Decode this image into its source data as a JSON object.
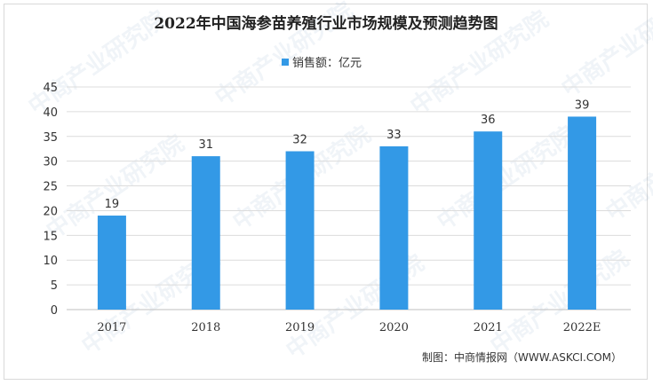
{
  "chart_data": {
    "type": "bar",
    "title": "2022年中国海参苗养殖行业市场规模及预测趋势图",
    "legend": {
      "label": "销售额：亿元",
      "position": "top"
    },
    "categories": [
      "2017",
      "2018",
      "2019",
      "2020",
      "2021",
      "2022E"
    ],
    "series": [
      {
        "name": "销售额：亿元",
        "values": [
          19,
          31,
          32,
          33,
          36,
          39
        ]
      }
    ],
    "yticks": [
      "0",
      "5",
      "10",
      "15",
      "20",
      "25",
      "30",
      "35",
      "40",
      "45"
    ],
    "ylim": [
      0,
      45
    ],
    "grid": true,
    "bar_color": "#3399e6",
    "grid_color": "#dcdcdc"
  },
  "source": "制图：中商情报网（WWW.ASKCI.COM）",
  "watermark": "中商产业研究院"
}
